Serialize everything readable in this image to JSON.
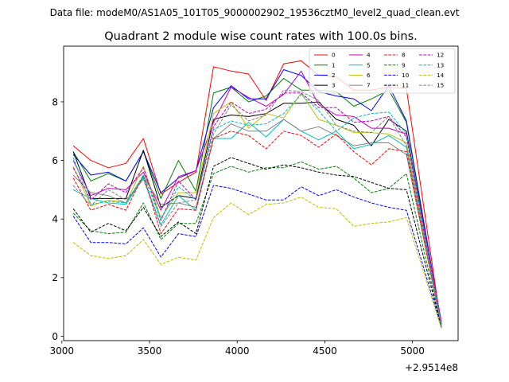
{
  "header": {
    "data_file": "Data file: modeM0/AS1A05_101T05_9000002902_19536cztM0_level2_quad_clean.evt"
  },
  "chart_data": {
    "type": "line",
    "title": "Quadrant 2 module wise count rates with 100.0s bins.",
    "xlabel": "",
    "ylabel": "",
    "x_offset_label": "+2.9514e8",
    "xlim": [
      3010,
      5260
    ],
    "ylim": [
      -0.15,
      9.9
    ],
    "xticks": [
      3000,
      3500,
      4000,
      4500,
      5000
    ],
    "yticks": [
      0,
      2,
      4,
      6,
      8
    ],
    "x": [
      3065,
      3165,
      3265,
      3365,
      3465,
      3565,
      3665,
      3765,
      3865,
      3965,
      4065,
      4165,
      4265,
      4365,
      4465,
      4565,
      4665,
      4765,
      4865,
      4965,
      5165
    ],
    "legend_location": "upper-right",
    "series": [
      {
        "name": "0",
        "color": "#ff0000",
        "dash": "solid",
        "values": [
          6.5,
          6.0,
          5.75,
          5.9,
          6.75,
          4.85,
          5.25,
          5.6,
          9.2,
          9.05,
          8.95,
          8.05,
          9.3,
          9.4,
          8.9,
          8.85,
          8.4,
          8.4,
          8.5,
          8.45,
          0.3
        ]
      },
      {
        "name": "1",
        "color": "#008000",
        "dash": "solid",
        "values": [
          6.3,
          5.3,
          5.55,
          5.3,
          6.3,
          4.7,
          6.0,
          4.95,
          8.3,
          8.5,
          8.0,
          8.2,
          8.8,
          8.4,
          8.4,
          8.35,
          7.85,
          8.1,
          8.4,
          7.3,
          0.3
        ]
      },
      {
        "name": "2",
        "color": "#0000ff",
        "dash": "solid",
        "values": [
          6.2,
          5.5,
          5.6,
          5.3,
          6.3,
          4.9,
          5.4,
          5.65,
          7.8,
          8.55,
          8.1,
          8.1,
          9.1,
          8.9,
          8.35,
          8.2,
          8.1,
          7.7,
          8.55,
          7.35,
          0.4
        ]
      },
      {
        "name": "3",
        "color": "#000000",
        "dash": "solid",
        "values": [
          6.3,
          4.7,
          4.7,
          4.7,
          6.35,
          4.4,
          4.8,
          4.7,
          7.4,
          7.55,
          7.5,
          7.6,
          7.95,
          7.95,
          8.0,
          7.4,
          7.2,
          6.5,
          7.4,
          7.0,
          0.4
        ]
      },
      {
        "name": "4",
        "color": "#bf00bf",
        "dash": "solid",
        "values": [
          6.0,
          4.8,
          5.05,
          5.0,
          5.6,
          4.3,
          5.45,
          5.65,
          7.3,
          8.5,
          8.15,
          7.85,
          8.25,
          9.05,
          7.9,
          7.55,
          7.5,
          7.1,
          7.1,
          6.9,
          0.5
        ]
      },
      {
        "name": "5",
        "color": "#00bfbf",
        "dash": "solid",
        "values": [
          5.0,
          4.7,
          4.55,
          4.5,
          5.4,
          3.8,
          4.8,
          4.3,
          6.75,
          6.75,
          7.3,
          6.8,
          7.4,
          7.0,
          6.7,
          7.0,
          6.4,
          6.55,
          6.85,
          6.45,
          0.4
        ]
      },
      {
        "name": "6",
        "color": "#bfbf00",
        "dash": "solid",
        "values": [
          5.8,
          4.45,
          4.65,
          4.55,
          5.8,
          4.05,
          4.9,
          4.9,
          7.6,
          8.0,
          7.1,
          7.6,
          7.45,
          8.3,
          7.4,
          7.2,
          6.95,
          6.95,
          6.9,
          6.6,
          0.35
        ]
      },
      {
        "name": "7",
        "color": "#808080",
        "dash": "solid",
        "values": [
          5.5,
          4.9,
          4.8,
          4.55,
          5.45,
          4.5,
          4.55,
          4.4,
          6.75,
          7.25,
          7.0,
          7.0,
          7.4,
          7.0,
          7.15,
          6.85,
          6.5,
          6.6,
          6.6,
          6.2,
          0.35
        ]
      },
      {
        "name": "8",
        "color": "#ff0000",
        "dash": "dashed",
        "values": [
          5.4,
          4.3,
          4.5,
          4.3,
          5.5,
          3.5,
          4.35,
          4.3,
          6.75,
          7.0,
          6.85,
          6.4,
          7.0,
          6.85,
          6.45,
          6.9,
          6.3,
          5.85,
          6.4,
          6.3,
          0.3
        ]
      },
      {
        "name": "9",
        "color": "#008000",
        "dash": "dashed",
        "values": [
          4.2,
          3.6,
          3.5,
          3.55,
          4.55,
          3.3,
          3.85,
          3.85,
          5.55,
          5.8,
          5.6,
          5.75,
          5.75,
          5.95,
          5.7,
          5.8,
          5.4,
          4.9,
          5.05,
          5.55,
          0.3
        ]
      },
      {
        "name": "10",
        "color": "#0000ff",
        "dash": "dashed",
        "values": [
          4.1,
          3.2,
          3.2,
          3.15,
          3.7,
          2.7,
          3.5,
          3.4,
          5.15,
          5.05,
          4.85,
          4.65,
          4.65,
          5.1,
          4.8,
          5.0,
          4.75,
          4.55,
          4.4,
          4.3,
          0.3
        ]
      },
      {
        "name": "11",
        "color": "#000000",
        "dash": "dashed",
        "values": [
          4.35,
          3.55,
          3.85,
          3.6,
          4.4,
          3.4,
          3.9,
          3.5,
          5.8,
          6.1,
          5.9,
          5.7,
          5.85,
          5.75,
          5.6,
          5.5,
          5.45,
          5.25,
          5.05,
          5.0,
          0.3
        ]
      },
      {
        "name": "12",
        "color": "#bf00bf",
        "dash": "dashed",
        "values": [
          5.75,
          4.65,
          5.2,
          4.9,
          5.75,
          3.95,
          5.3,
          4.65,
          7.15,
          8.0,
          7.6,
          7.75,
          8.3,
          8.3,
          7.8,
          7.8,
          7.3,
          7.35,
          7.5,
          6.8,
          0.3
        ]
      },
      {
        "name": "13",
        "color": "#00bfbf",
        "dash": "dashed",
        "values": [
          6.1,
          4.5,
          4.6,
          4.55,
          5.5,
          4.0,
          5.1,
          4.65,
          7.05,
          7.35,
          7.2,
          7.25,
          7.6,
          8.25,
          7.7,
          7.0,
          7.45,
          7.6,
          7.65,
          6.9,
          0.35
        ]
      },
      {
        "name": "14",
        "color": "#bfbf00",
        "dash": "dashed",
        "values": [
          3.2,
          2.75,
          2.65,
          2.75,
          3.3,
          2.45,
          2.7,
          2.6,
          4.05,
          4.55,
          4.15,
          4.5,
          4.55,
          4.75,
          4.4,
          4.35,
          3.75,
          3.85,
          3.9,
          4.05,
          0.25
        ]
      },
      {
        "name": "15",
        "color": "#808080",
        "dash": "dashed",
        "values": [
          5.15,
          4.45,
          5.0,
          4.65,
          5.35,
          3.75,
          4.55,
          4.65,
          6.9,
          7.9,
          7.35,
          7.55,
          8.4,
          8.35,
          8.05,
          7.2,
          7.0,
          6.95,
          7.5,
          6.5,
          0.3
        ]
      }
    ]
  }
}
